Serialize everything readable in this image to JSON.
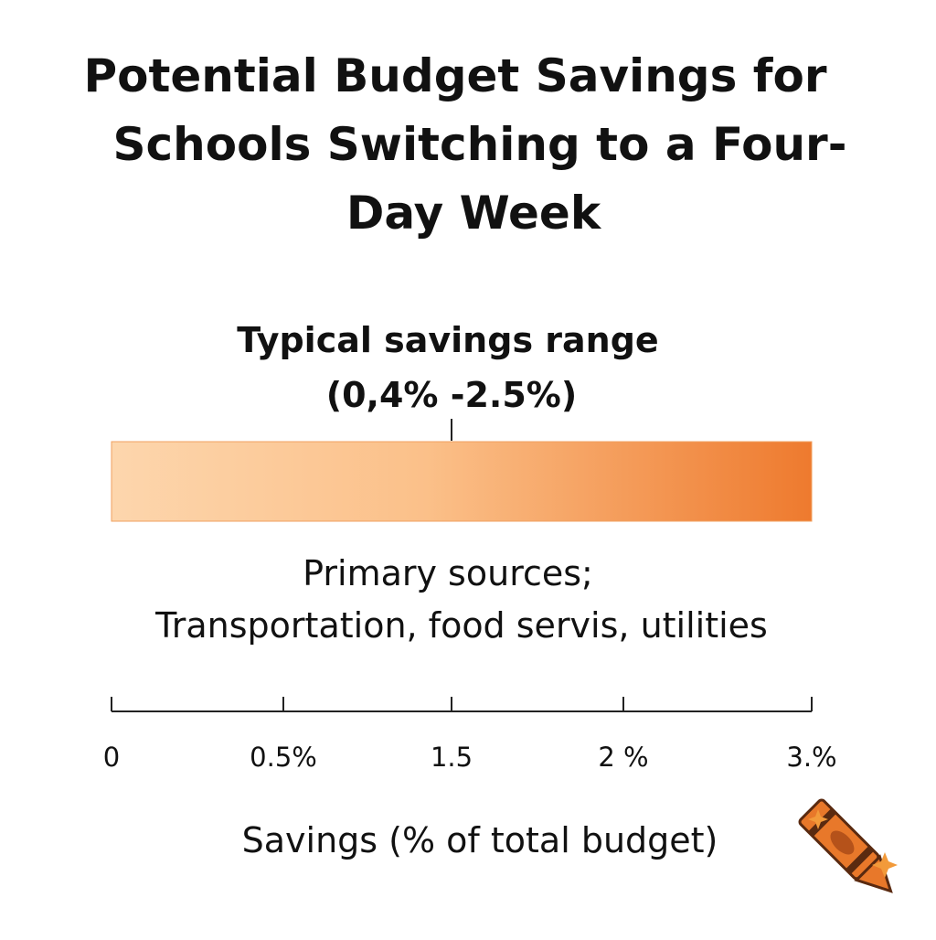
{
  "title_lines": [
    "Potential Budget Savings for",
    "Schools Switching to a Four-",
    "Day Week"
  ],
  "range_label_lines": [
    "Typical savings range",
    "(0,4% -2.5%)"
  ],
  "sources_lines": [
    "Primary sources;",
    "Transportation, food servis, utilities"
  ],
  "axis_ticks": [
    "0",
    "0.5%",
    "1.5",
    "2 %",
    "3.%"
  ],
  "axis_label": "Savings (% of total budget)"
}
